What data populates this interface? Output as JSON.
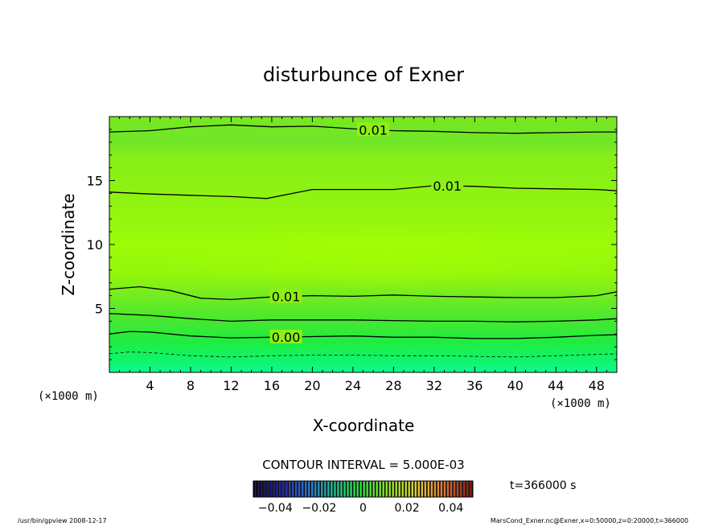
{
  "chart_data": {
    "type": "heatmap",
    "title": "disturbunce of Exner",
    "xlabel": "X-coordinate",
    "ylabel": "Z-coordinate",
    "xunit": "(×1000 m)",
    "xunit_left": "(×1000 m)",
    "xlim": [
      0,
      50
    ],
    "ylim": [
      0,
      20
    ],
    "xticks": [
      4,
      8,
      12,
      16,
      20,
      24,
      28,
      32,
      36,
      40,
      44,
      48
    ],
    "yticks": [
      5,
      10,
      15
    ],
    "contour_interval_text": "CONTOUR INTERVAL = 5.000E-03",
    "time_label": "t=366000 s",
    "contours": [
      {
        "label": "0.01",
        "label_x": 26.0,
        "points": [
          [
            0,
            18.8
          ],
          [
            4,
            18.9
          ],
          [
            8,
            19.2
          ],
          [
            12,
            19.35
          ],
          [
            16,
            19.2
          ],
          [
            20,
            19.25
          ],
          [
            24,
            19.05
          ],
          [
            28,
            18.9
          ],
          [
            32,
            18.85
          ],
          [
            36,
            18.75
          ],
          [
            40,
            18.7
          ],
          [
            44,
            18.75
          ],
          [
            48,
            18.8
          ],
          [
            50,
            18.8
          ]
        ]
      },
      {
        "label": "0.01",
        "label_x": 33.3,
        "points": [
          [
            0,
            14.1
          ],
          [
            4,
            13.95
          ],
          [
            8,
            13.85
          ],
          [
            12,
            13.75
          ],
          [
            15.5,
            13.6
          ],
          [
            20,
            14.3
          ],
          [
            24,
            14.3
          ],
          [
            28,
            14.3
          ],
          [
            32,
            14.6
          ],
          [
            36,
            14.55
          ],
          [
            40,
            14.4
          ],
          [
            44,
            14.35
          ],
          [
            48,
            14.3
          ],
          [
            50,
            14.2
          ]
        ]
      },
      {
        "label": "0.01",
        "label_x": 17.4,
        "points": [
          [
            0,
            6.5
          ],
          [
            3,
            6.7
          ],
          [
            6,
            6.4
          ],
          [
            9,
            5.8
          ],
          [
            12,
            5.7
          ],
          [
            16,
            5.9
          ],
          [
            20,
            6.0
          ],
          [
            24,
            5.95
          ],
          [
            28,
            6.05
          ],
          [
            32,
            5.95
          ],
          [
            36,
            5.9
          ],
          [
            40,
            5.85
          ],
          [
            44,
            5.85
          ],
          [
            48,
            6.0
          ],
          [
            50,
            6.3
          ]
        ]
      },
      {
        "label": "",
        "label_x": null,
        "points": [
          [
            0,
            4.6
          ],
          [
            4,
            4.45
          ],
          [
            8,
            4.2
          ],
          [
            12,
            4.0
          ],
          [
            16,
            4.1
          ],
          [
            20,
            4.1
          ],
          [
            24,
            4.1
          ],
          [
            28,
            4.05
          ],
          [
            32,
            4.0
          ],
          [
            36,
            4.0
          ],
          [
            40,
            3.95
          ],
          [
            44,
            4.0
          ],
          [
            48,
            4.1
          ],
          [
            50,
            4.2
          ]
        ]
      },
      {
        "label": "0.00",
        "label_x": 17.4,
        "points": [
          [
            0,
            3.0
          ],
          [
            2,
            3.2
          ],
          [
            4,
            3.15
          ],
          [
            8,
            2.85
          ],
          [
            12,
            2.7
          ],
          [
            16,
            2.75
          ],
          [
            20,
            2.8
          ],
          [
            24,
            2.85
          ],
          [
            28,
            2.75
          ],
          [
            32,
            2.75
          ],
          [
            36,
            2.65
          ],
          [
            40,
            2.65
          ],
          [
            44,
            2.75
          ],
          [
            48,
            2.9
          ],
          [
            50,
            2.95
          ]
        ]
      },
      {
        "label": "",
        "label_x": null,
        "dashed": true,
        "points": [
          [
            0,
            1.45
          ],
          [
            2,
            1.6
          ],
          [
            4,
            1.55
          ],
          [
            8,
            1.3
          ],
          [
            12,
            1.2
          ],
          [
            16,
            1.3
          ],
          [
            20,
            1.35
          ],
          [
            24,
            1.35
          ],
          [
            28,
            1.3
          ],
          [
            32,
            1.3
          ],
          [
            36,
            1.25
          ],
          [
            40,
            1.2
          ],
          [
            44,
            1.3
          ],
          [
            48,
            1.4
          ],
          [
            50,
            1.45
          ]
        ]
      }
    ],
    "colorbar": {
      "tick_labels": [
        "−0.04",
        "−0.02",
        "0",
        "0.02",
        "0.04"
      ],
      "tick_values": [
        -0.04,
        -0.02,
        0,
        0.02,
        0.04
      ],
      "vmin": -0.05,
      "vmax": 0.05
    },
    "grid": false
  },
  "footer": {
    "left_text": "/usr/bin/gpview   2008-12-17",
    "right_text": "MarsCond_Exner.nc@Exner,x=0:50000,z=0:20000,t=366000"
  },
  "colors": {
    "band_top": "#80e818",
    "band_mid": "#98f808",
    "band_low": "#30f040",
    "band_bottom": "#10f888"
  }
}
